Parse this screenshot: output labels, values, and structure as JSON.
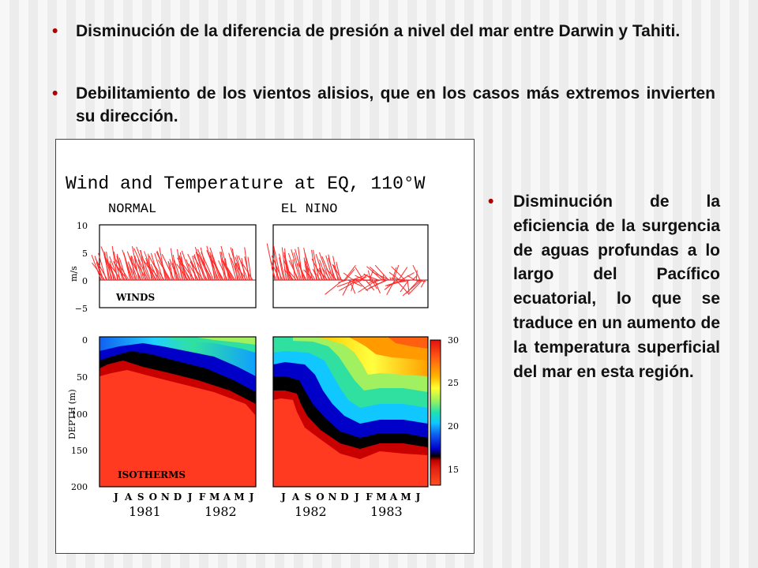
{
  "bullets": [
    {
      "marker": "•",
      "text": "Disminución de la diferencia de presión a nivel del mar entre Darwin y Tahiti."
    },
    {
      "marker": "•",
      "text": "Debilitamiento de los vientos alisios, que en los casos más extremos invierten su dirección."
    },
    {
      "marker": "•",
      "text": "Disminución de la eficiencia de la surgencia de aguas profundas a lo largo del Pacífico ecuatorial, lo que se traduce en un aumento de la temperatura superficial del mar en esta región."
    }
  ],
  "figure": {
    "title": "Wind and Temperature at EQ, 110°W",
    "panel_left": "NORMAL",
    "panel_right": "EL NINO",
    "wind_label": "WINDS",
    "isotherm_label": "ISOTHERMS",
    "wind_axis": {
      "unit": "m/s",
      "ticks": [
        "10",
        "5",
        "0",
        "−5"
      ]
    },
    "depth_axis": {
      "label": "DEPTH (m)",
      "ticks": [
        "0",
        "50",
        "100",
        "150",
        "200"
      ]
    },
    "colorbar_ticks": [
      "30",
      "25",
      "20",
      "15"
    ],
    "months": [
      "J",
      "A",
      "S",
      "O",
      "N",
      "D",
      "J",
      "F",
      "M",
      "A",
      "M",
      "J"
    ],
    "years_left": [
      "1981",
      "1982"
    ],
    "years_right": [
      "1982",
      "1983"
    ],
    "colors": {
      "wind": "#ff2a2a",
      "bullet_marker": "#b00000"
    }
  }
}
